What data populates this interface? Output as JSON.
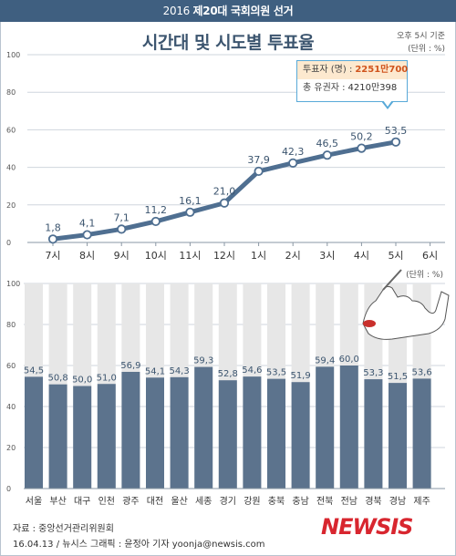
{
  "header": {
    "year": "2016",
    "election": "제20대 국회의원 선거"
  },
  "title": "시간대 및 시도별 투표율",
  "as_of": "오후 5시 기준",
  "unit_top": "(단위 : %)",
  "unit_bottom": "(단위 : %)",
  "callout": {
    "voters_label": "투표자 (명) :",
    "voters_value": "2251만700",
    "total_label": "총 유권자 :",
    "total_value": "4210만398"
  },
  "colors": {
    "line": "#4f6f91",
    "bar": "#5c738d",
    "bar_bg": "#e7e7e7",
    "header": "#3f5f80",
    "accent": "#d0541d",
    "logo": "#d8262f"
  },
  "chart_data": [
    {
      "type": "line",
      "title": "",
      "x": [
        "7시",
        "8시",
        "9시",
        "10시",
        "11시",
        "12시",
        "1시",
        "2시",
        "3시",
        "4시",
        "5시",
        "6시"
      ],
      "y": [
        1.8,
        4.1,
        7.1,
        11.2,
        16.1,
        21.0,
        37.9,
        42.3,
        46.5,
        50.2,
        53.5,
        null
      ],
      "data_labels": [
        "1,8",
        "4,1",
        "7,1",
        "11,2",
        "16,1",
        "21,0",
        "37,9",
        "42,3",
        "46,5",
        "50,2",
        "53,5",
        ""
      ],
      "y_ticks": [
        "0",
        "20",
        "40",
        "60",
        "80",
        "100"
      ],
      "ylim": [
        0,
        100
      ],
      "grid": true
    },
    {
      "type": "bar",
      "categories": [
        "서울",
        "부산",
        "대구",
        "인천",
        "광주",
        "대전",
        "울산",
        "세종",
        "경기",
        "강원",
        "충북",
        "충남",
        "전북",
        "전남",
        "경북",
        "경남",
        "제주"
      ],
      "values": [
        54.5,
        50.8,
        50.0,
        51.0,
        56.9,
        54.1,
        54.3,
        59.3,
        52.8,
        54.6,
        53.5,
        51.9,
        59.4,
        60.0,
        53.3,
        51.5,
        53.6
      ],
      "data_labels": [
        "54,5",
        "50,8",
        "50,0",
        "51,0",
        "56,9",
        "54,1",
        "54,3",
        "59,3",
        "52,8",
        "54,6",
        "53,5",
        "51,9",
        "59,4",
        "60,0",
        "53,3",
        "51,5",
        "53,6"
      ],
      "y_ticks": [
        "0",
        "20",
        "40",
        "60",
        "80",
        "100"
      ],
      "ylim": [
        0,
        100
      ],
      "grid": true
    }
  ],
  "footer": {
    "source": "자료 : 중앙선거관리위원회",
    "credit": "16.04.13 / 뉴시스 그래픽 : 윤정아 기자 yoonja@newsis.com",
    "logo": "NEWSIS"
  }
}
